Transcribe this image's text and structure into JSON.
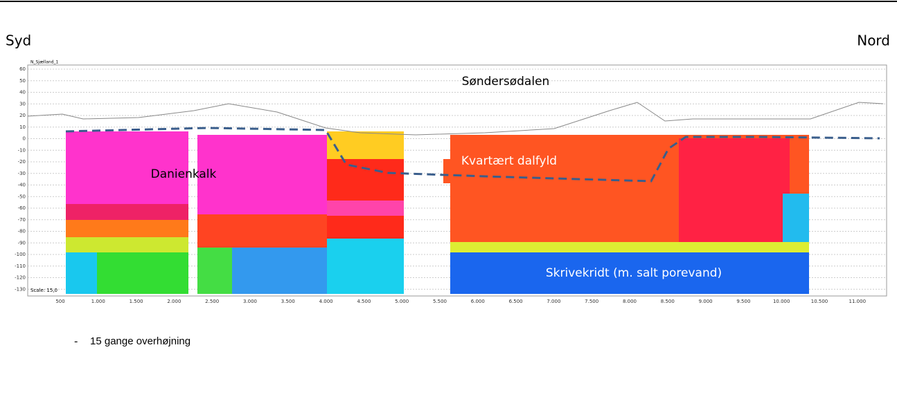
{
  "header": {
    "left": "Syd",
    "right": "Nord"
  },
  "profile": {
    "name": "N_Sjælland_1",
    "scale": "Scale: 15,0",
    "yticks": [
      "60",
      "50",
      "40",
      "30",
      "20",
      "10",
      "0",
      "-10",
      "-20",
      "-30",
      "-40",
      "-50",
      "-60",
      "-70",
      "-80",
      "-90",
      "-100",
      "-110",
      "-120",
      "-130"
    ],
    "xticks": [
      "500",
      "1.000",
      "1.500",
      "2.000",
      "2.500",
      "3.000",
      "3.500",
      "4.000",
      "4.500",
      "5.000",
      "5.500",
      "6.000",
      "6.500",
      "7.000",
      "7.500",
      "8.000",
      "8.500",
      "9.000",
      "9.500",
      "10.000",
      "10.500",
      "11.000"
    ],
    "annotations": [
      "Søndersødalen",
      "Danienkalk",
      "Kvartært dalfyld",
      "Skrivekridt (m. salt porevand)"
    ]
  },
  "footnote": {
    "bullet": "-",
    "text": "15 gange overhøjning"
  }
}
